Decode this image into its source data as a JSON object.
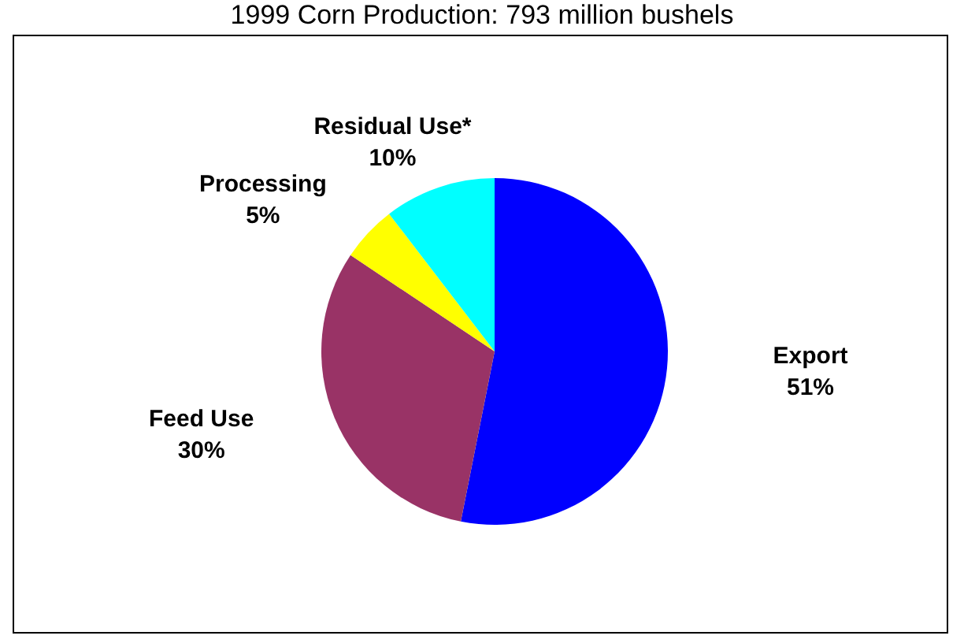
{
  "chart_data": {
    "type": "pie",
    "title": "1999 Corn Production: 793 million bushels",
    "categories": [
      "Export",
      "Feed Use",
      "Processing",
      "Residual Use*"
    ],
    "values": [
      51,
      30,
      5,
      10
    ],
    "value_labels": [
      "51%",
      "30%",
      "5%",
      "10%"
    ],
    "colors": [
      "#0000ff",
      "#993366",
      "#ffff00",
      "#00ffff"
    ]
  }
}
